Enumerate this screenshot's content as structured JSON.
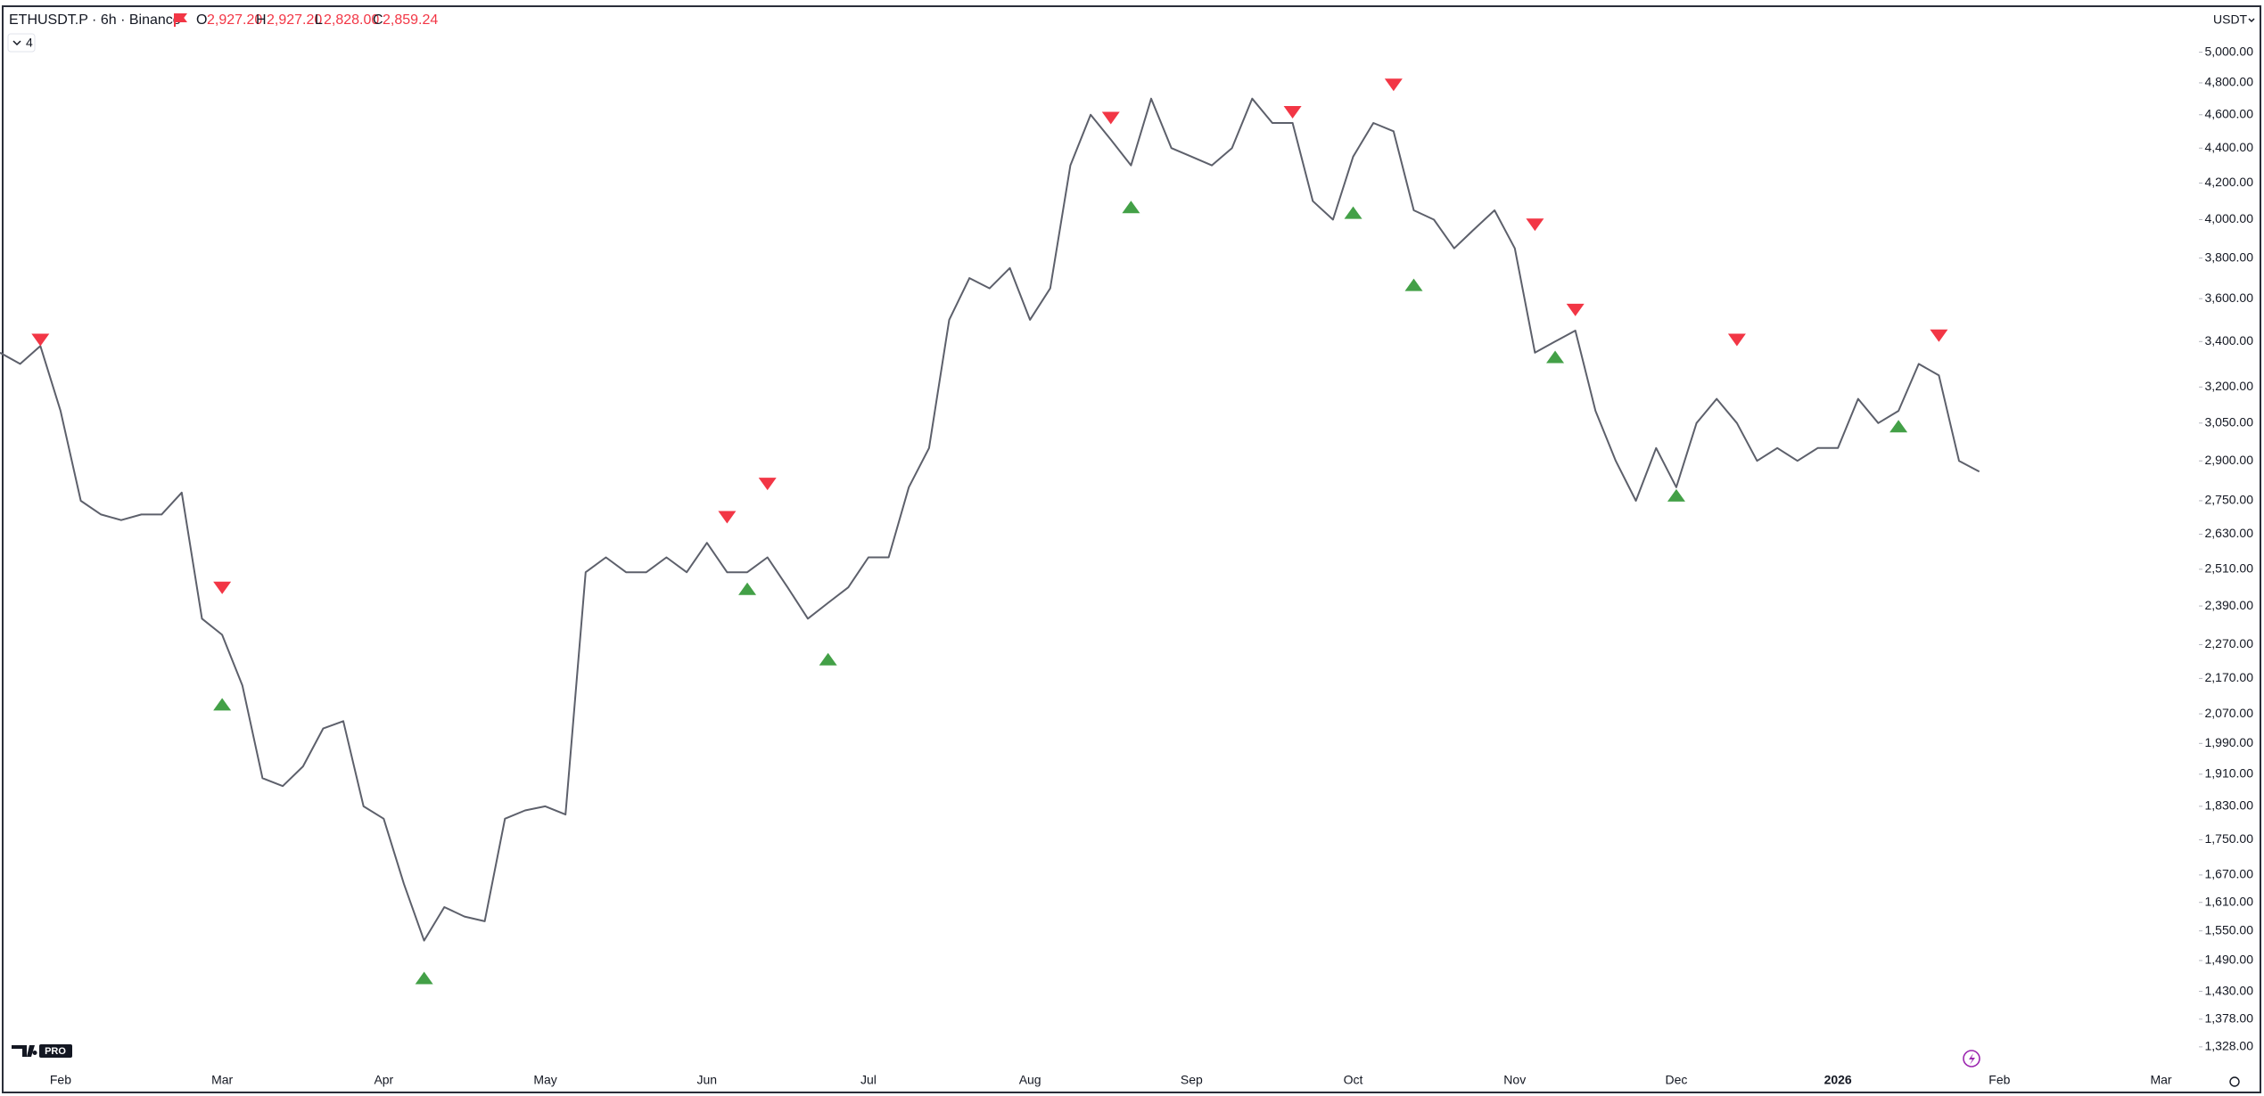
{
  "chart_data": {
    "type": "line",
    "title": "ETHUSDT.P · 6h · Binance",
    "ohlc": [
      {
        "label": "O",
        "value": "2,927.20"
      },
      {
        "label": "H",
        "value": "2,927.20"
      },
      {
        "label": "L",
        "value": "2,828.00"
      },
      {
        "label": "C",
        "value": "2,859.24"
      }
    ],
    "indicators_count": "4",
    "currency": "USDT",
    "badge": "PRO",
    "log_scale": true,
    "grid": false,
    "categories": [
      null,
      null,
      null,
      "Feb",
      null,
      null,
      null,
      null,
      null,
      null,
      null,
      "Mar",
      null,
      null,
      null,
      null,
      null,
      null,
      null,
      "Apr",
      null,
      null,
      null,
      null,
      null,
      null,
      null,
      "May",
      null,
      null,
      null,
      null,
      null,
      null,
      null,
      "Jun",
      null,
      null,
      null,
      null,
      null,
      null,
      null,
      "Jul",
      null,
      null,
      null,
      null,
      null,
      null,
      null,
      "Aug",
      null,
      null,
      null,
      null,
      null,
      null,
      null,
      "Sep",
      null,
      null,
      null,
      null,
      null,
      null,
      null,
      "Oct",
      null,
      null,
      null,
      null,
      null,
      null,
      null,
      "Nov",
      null,
      null,
      null,
      null,
      null,
      null,
      null,
      "Dec",
      null,
      null,
      null,
      null,
      null,
      null,
      null,
      "2026",
      null,
      null,
      null,
      null,
      null,
      null,
      null,
      "Feb",
      null,
      null,
      null,
      null,
      null,
      null,
      null,
      "Mar",
      null
    ],
    "series": [
      {
        "color": "#5d606b",
        "values": [
          3350,
          3300,
          3380,
          3100,
          2750,
          2700,
          2680,
          2700,
          2700,
          2780,
          2350,
          2300,
          2150,
          1900,
          1880,
          1930,
          2030,
          2050,
          1830,
          1800,
          1650,
          1530,
          1600,
          1580,
          1570,
          1800,
          1820,
          1830,
          1810,
          2500,
          2550,
          2500,
          2500,
          2550,
          2500,
          2600,
          2500,
          2500,
          2550,
          2450,
          2350,
          2400,
          2450,
          2550,
          2550,
          2800,
          2950,
          3500,
          3700,
          3650,
          3750,
          3500,
          3650,
          4300,
          4600,
          4450,
          4300,
          4700,
          4400,
          4350,
          4300,
          4400,
          4700,
          4550,
          4550,
          4100,
          4000,
          4350,
          4550,
          4500,
          4050,
          4000,
          3850,
          3950,
          4050,
          3850,
          3350,
          3400,
          3450,
          3100,
          2900,
          2750,
          2950,
          2800,
          3050,
          3150,
          3050,
          2900,
          2950,
          2900,
          2950,
          2950,
          3150,
          3050,
          3100,
          3300,
          3250,
          2900,
          2859,
          null,
          null,
          null,
          null,
          null,
          null,
          null,
          null,
          null,
          null
        ]
      },
      {
        "color": "#f23645",
        "marker": "triangle-down",
        "values": [
          null,
          null,
          3379,
          null,
          null,
          null,
          null,
          null,
          null,
          null,
          null,
          2428,
          null,
          null,
          null,
          null,
          null,
          null,
          null,
          null,
          null,
          null,
          null,
          null,
          null,
          null,
          null,
          null,
          null,
          null,
          null,
          null,
          null,
          null,
          null,
          null,
          2668,
          null,
          2789,
          null,
          null,
          null,
          null,
          null,
          null,
          null,
          null,
          null,
          null,
          null,
          null,
          null,
          null,
          null,
          null,
          4542,
          null,
          null,
          null,
          null,
          null,
          null,
          null,
          null,
          4577,
          null,
          null,
          null,
          null,
          4747,
          null,
          null,
          null,
          null,
          null,
          null,
          3940,
          null,
          3517,
          null,
          null,
          null,
          null,
          null,
          null,
          null,
          3379,
          null,
          null,
          null,
          null,
          null,
          null,
          null,
          null,
          null,
          3398,
          null,
          null,
          null,
          null,
          null,
          null,
          null,
          null,
          null,
          null,
          null,
          null
        ]
      },
      {
        "color": "#43a047",
        "marker": "triangle-up",
        "values": [
          null,
          null,
          null,
          null,
          null,
          null,
          null,
          null,
          null,
          null,
          null,
          2114,
          null,
          null,
          null,
          null,
          null,
          null,
          null,
          null,
          null,
          1468,
          null,
          null,
          null,
          null,
          null,
          null,
          null,
          null,
          null,
          null,
          null,
          null,
          null,
          null,
          null,
          2466,
          null,
          null,
          null,
          2245,
          null,
          null,
          null,
          null,
          null,
          null,
          null,
          null,
          null,
          null,
          null,
          null,
          null,
          null,
          4102,
          null,
          null,
          null,
          null,
          null,
          null,
          null,
          null,
          null,
          null,
          4071,
          null,
          null,
          3698,
          null,
          null,
          null,
          null,
          null,
          null,
          3359,
          null,
          null,
          null,
          null,
          null,
          2793,
          null,
          null,
          null,
          null,
          null,
          null,
          null,
          null,
          null,
          null,
          3063,
          null,
          null,
          null,
          null,
          null,
          null,
          null,
          null,
          null,
          null,
          null,
          null,
          null,
          null
        ]
      }
    ],
    "ylim": [
      1292,
      5297
    ],
    "yticks": [
      {
        "value": 5000,
        "label": "5,000.00"
      },
      {
        "value": 4800,
        "label": "4,800.00"
      },
      {
        "value": 4600,
        "label": "4,600.00"
      },
      {
        "value": 4400,
        "label": "4,400.00"
      },
      {
        "value": 4200,
        "label": "4,200.00"
      },
      {
        "value": 4000,
        "label": "4,000.00"
      },
      {
        "value": 3800,
        "label": "3,800.00"
      },
      {
        "value": 3600,
        "label": "3,600.00"
      },
      {
        "value": 3400,
        "label": "3,400.00"
      },
      {
        "value": 3200,
        "label": "3,200.00"
      },
      {
        "value": 3050,
        "label": "3,050.00"
      },
      {
        "value": 2900,
        "label": "2,900.00"
      },
      {
        "value": 2750,
        "label": "2,750.00"
      },
      {
        "value": 2630,
        "label": "2,630.00"
      },
      {
        "value": 2510,
        "label": "2,510.00"
      },
      {
        "value": 2390,
        "label": "2,390.00"
      },
      {
        "value": 2270,
        "label": "2,270.00"
      },
      {
        "value": 2170,
        "label": "2,170.00"
      },
      {
        "value": 2070,
        "label": "2,070.00"
      },
      {
        "value": 1990,
        "label": "1,990.00"
      },
      {
        "value": 1910,
        "label": "1,910.00"
      },
      {
        "value": 1830,
        "label": "1,830.00"
      },
      {
        "value": 1750,
        "label": "1,750.00"
      },
      {
        "value": 1670,
        "label": "1,670.00"
      },
      {
        "value": 1610,
        "label": "1,610.00"
      },
      {
        "value": 1550,
        "label": "1,550.00"
      },
      {
        "value": 1490,
        "label": "1,490.00"
      },
      {
        "value": 1430,
        "label": "1,430.00"
      },
      {
        "value": 1378,
        "label": "1,378.00"
      },
      {
        "value": 1328,
        "label": "1,328.00"
      }
    ]
  }
}
